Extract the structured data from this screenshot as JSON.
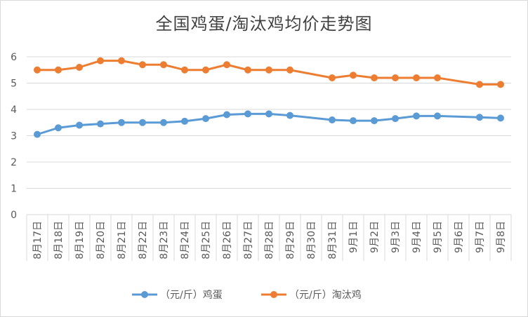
{
  "chart_data": {
    "type": "line",
    "title": "全国鸡蛋/淘汰鸡均价走势图",
    "xlabel": "",
    "ylabel": "",
    "categories": [
      "8月17日",
      "8月18日",
      "8月19日",
      "8月20日",
      "8月21日",
      "8月22日",
      "8月23日",
      "8月24日",
      "8月25日",
      "8月26日",
      "8月27日",
      "8月28日",
      "8月29日",
      "8月30日",
      "8月31日",
      "9月1日",
      "9月2日",
      "9月3日",
      "9月4日",
      "9月5日",
      "9月6日",
      "9月7日",
      "9月8日"
    ],
    "series": [
      {
        "name": "（元/斤）鸡蛋",
        "color": "#5b9bd5",
        "values": [
          3.05,
          3.3,
          3.4,
          3.45,
          3.5,
          3.5,
          3.5,
          3.55,
          3.65,
          3.8,
          3.83,
          3.83,
          3.77,
          null,
          3.6,
          3.57,
          3.57,
          3.65,
          3.75,
          3.75,
          null,
          3.7,
          3.67
        ]
      },
      {
        "name": "（元/斤）淘汰鸡",
        "color": "#ed7d31",
        "values": [
          5.5,
          5.5,
          5.6,
          5.85,
          5.85,
          5.7,
          5.7,
          5.5,
          5.5,
          5.7,
          5.5,
          5.5,
          5.5,
          null,
          5.2,
          5.3,
          5.2,
          5.2,
          5.2,
          5.2,
          null,
          4.95,
          4.95
        ]
      }
    ],
    "ylim": [
      0,
      6
    ],
    "yticks": [
      0,
      1,
      2,
      3,
      4,
      5,
      6
    ],
    "grid": true,
    "legend": "bottom"
  }
}
